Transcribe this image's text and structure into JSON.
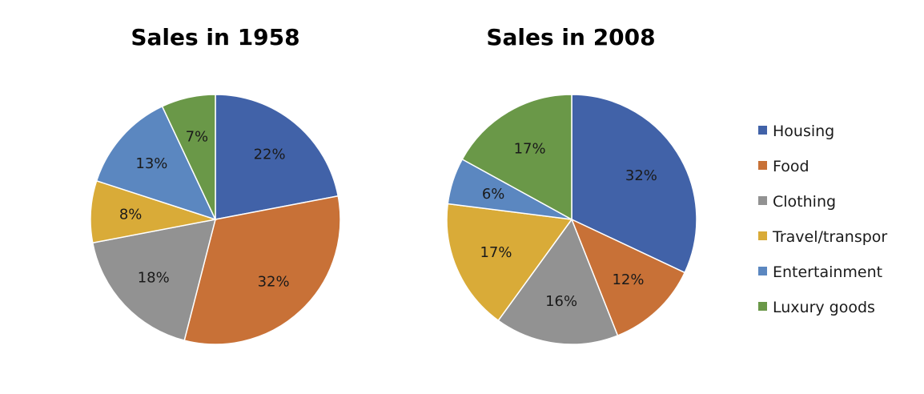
{
  "chart_data": [
    {
      "type": "pie",
      "title": "Sales in 1958",
      "categories": [
        "Housing",
        "Food",
        "Clothing",
        "Travel/transport",
        "Entertainment",
        "Luxury goods"
      ],
      "values": [
        22,
        32,
        18,
        8,
        13,
        7
      ],
      "labels": [
        "22%",
        "32%",
        "18%",
        "8%",
        "13%",
        "7%"
      ],
      "colors": [
        "#4162a8",
        "#c87137",
        "#929292",
        "#d9ab38",
        "#5b87c0",
        "#6a9848"
      ],
      "start": "12 o'clock, clockwise"
    },
    {
      "type": "pie",
      "title": "Sales in 2008",
      "categories": [
        "Housing",
        "Food",
        "Clothing",
        "Travel/transport",
        "Entertainment",
        "Luxury goods"
      ],
      "values": [
        32,
        12,
        16,
        17,
        6,
        17
      ],
      "labels": [
        "32%",
        "12%",
        "16%",
        "17%",
        "6%",
        "17%"
      ],
      "colors": [
        "#4162a8",
        "#c87137",
        "#929292",
        "#d9ab38",
        "#5b87c0",
        "#6a9848"
      ],
      "start": "12 o'clock, clockwise"
    }
  ],
  "legend": {
    "placement": "right",
    "items": [
      {
        "label": "Housing",
        "color": "#4162a8"
      },
      {
        "label": "Food",
        "color": "#c87137"
      },
      {
        "label": "Clothing",
        "color": "#929292"
      },
      {
        "label": "Travel/transpor",
        "color": "#d9ab38"
      },
      {
        "label": "Entertainment",
        "color": "#5b87c0"
      },
      {
        "label": "Luxury goods",
        "color": "#6a9848"
      }
    ]
  }
}
